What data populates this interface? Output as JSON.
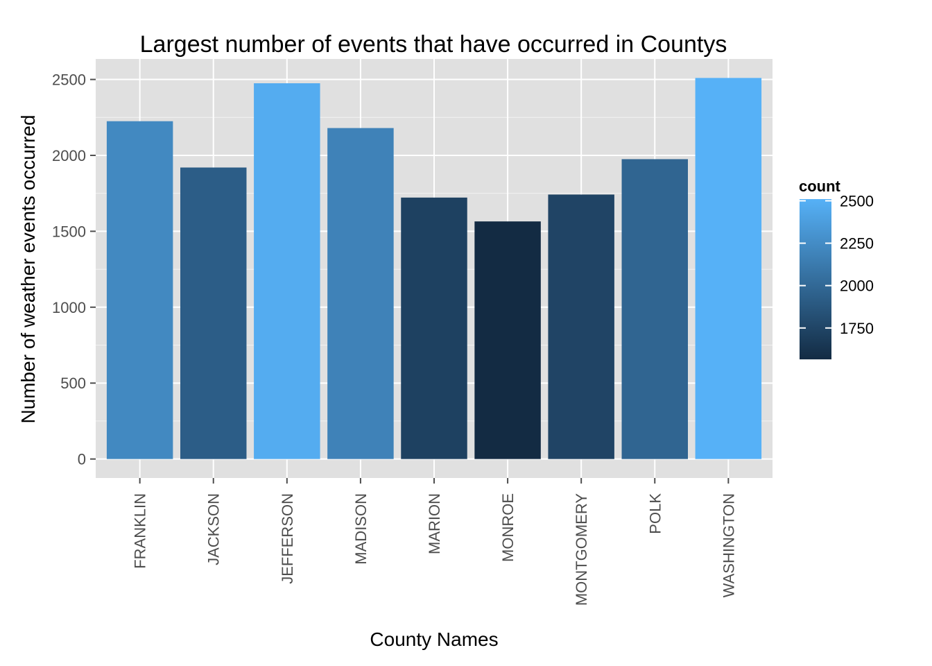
{
  "chart_data": {
    "type": "bar",
    "title": "Largest number of events that have occurred in Countys",
    "xlabel": "County Names",
    "ylabel": "Number of weather events occurred",
    "categories": [
      "FRANKLIN",
      "JACKSON",
      "JEFFERSON",
      "MADISON",
      "MARION",
      "MONROE",
      "MONTGOMERY",
      "POLK",
      "WASHINGTON"
    ],
    "values": [
      2225,
      1920,
      2475,
      2180,
      1722,
      1565,
      1742,
      1975,
      2510
    ],
    "ylim": [
      -125,
      2635
    ],
    "yticks": [
      0,
      500,
      1000,
      1500,
      2000,
      2500
    ],
    "ytick_labels": [
      "0",
      "500",
      "1000",
      "1500",
      "2000",
      "2500"
    ],
    "grid": true,
    "colors": {
      "panel_background": "#e0e0e0",
      "grid": "#ffffff",
      "fill_low": "#132b43",
      "fill_high": "#56b1f7"
    },
    "legend": {
      "title": "count",
      "position": "right",
      "range": [
        1565,
        2510
      ],
      "breaks": [
        1750,
        2000,
        2250,
        2500
      ],
      "labels": [
        "1750",
        "2000",
        "2250",
        "2500"
      ]
    }
  }
}
